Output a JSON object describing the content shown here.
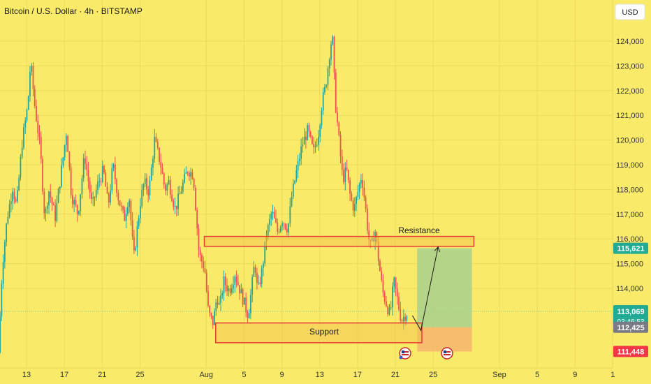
{
  "header": {
    "title": "Bitcoin / U.S. Dollar · 4h · BITSTAMP",
    "currency_button": "USD"
  },
  "colors": {
    "background": "#f9ea6a",
    "up": "#26a69a",
    "down": "#ef5350",
    "zone_stroke": "#e53935",
    "zone_fill": "#f6c451",
    "target_fill": "#a8d08d",
    "stop_fill": "#f7b46e",
    "current_price_bg": "#22ab94",
    "entry_bg": "#787b86",
    "stop_bg": "#f23645"
  },
  "chart_data": {
    "type": "candlestick",
    "y_ticks": [
      "124,000",
      "123,000",
      "122,000",
      "121,000",
      "120,000",
      "119,000",
      "118,000",
      "117,000",
      "116,000",
      "115,000",
      "114,000"
    ],
    "ylim": [
      111000,
      124600
    ],
    "x_ticks": [
      "13",
      "17",
      "21",
      "25",
      "Aug",
      "5",
      "9",
      "13",
      "17",
      "21",
      "25",
      "Sep",
      "5",
      "9",
      "1"
    ],
    "x_tick_values": [
      13,
      17,
      21,
      25,
      32,
      36,
      40,
      44,
      48,
      52,
      56,
      63,
      67,
      71,
      75
    ],
    "xlim": [
      10.2,
      76.3
    ],
    "candle_range_days": [
      10.2,
      53.3
    ],
    "price_path": [
      [
        10.2,
        111400
      ],
      [
        10.6,
        114900
      ],
      [
        11.1,
        116800
      ],
      [
        11.7,
        118100
      ],
      [
        12.1,
        117300
      ],
      [
        12.7,
        119900
      ],
      [
        13.3,
        121400
      ],
      [
        13.6,
        123200
      ],
      [
        14.0,
        121500
      ],
      [
        14.6,
        119700
      ],
      [
        15.1,
        116800
      ],
      [
        15.5,
        118000
      ],
      [
        16.2,
        116900
      ],
      [
        16.9,
        118900
      ],
      [
        17.4,
        120400
      ],
      [
        17.9,
        117800
      ],
      [
        18.6,
        117000
      ],
      [
        19.3,
        119400
      ],
      [
        20.1,
        117300
      ],
      [
        20.7,
        118200
      ],
      [
        21.3,
        118800
      ],
      [
        21.8,
        117300
      ],
      [
        22.3,
        119000
      ],
      [
        22.9,
        117600
      ],
      [
        23.5,
        116800
      ],
      [
        24.0,
        117800
      ],
      [
        24.5,
        115200
      ],
      [
        25.2,
        117500
      ],
      [
        25.6,
        118300
      ],
      [
        26.1,
        117900
      ],
      [
        26.7,
        120000
      ],
      [
        27.3,
        119100
      ],
      [
        27.8,
        118000
      ],
      [
        28.2,
        118300
      ],
      [
        28.9,
        117200
      ],
      [
        29.6,
        118100
      ],
      [
        30.2,
        118800
      ],
      [
        30.8,
        118600
      ],
      [
        31.4,
        115400
      ],
      [
        32.0,
        114800
      ],
      [
        32.4,
        113000
      ],
      [
        32.9,
        112600
      ],
      [
        33.3,
        113700
      ],
      [
        33.6,
        113200
      ],
      [
        34.0,
        114300
      ],
      [
        34.6,
        113900
      ],
      [
        35.2,
        114600
      ],
      [
        35.6,
        114100
      ],
      [
        36.1,
        113500
      ],
      [
        36.6,
        112900
      ],
      [
        36.9,
        113800
      ],
      [
        37.3,
        115100
      ],
      [
        37.6,
        113800
      ],
      [
        38.1,
        114800
      ],
      [
        38.5,
        116100
      ],
      [
        39.1,
        117100
      ],
      [
        39.7,
        116300
      ],
      [
        40.2,
        116800
      ],
      [
        40.8,
        116400
      ],
      [
        41.2,
        117700
      ],
      [
        41.7,
        118700
      ],
      [
        42.3,
        119800
      ],
      [
        42.9,
        120400
      ],
      [
        43.5,
        119500
      ],
      [
        44.0,
        120200
      ],
      [
        44.4,
        121500
      ],
      [
        44.8,
        122200
      ],
      [
        45.2,
        123500
      ],
      [
        45.5,
        124300
      ],
      [
        45.8,
        121600
      ],
      [
        46.2,
        120000
      ],
      [
        46.6,
        118400
      ],
      [
        47.0,
        118800
      ],
      [
        47.4,
        117700
      ],
      [
        47.8,
        117200
      ],
      [
        48.2,
        117900
      ],
      [
        48.6,
        118600
      ],
      [
        49.0,
        117300
      ],
      [
        49.3,
        116100
      ],
      [
        49.6,
        115600
      ],
      [
        50.0,
        116400
      ],
      [
        50.4,
        115100
      ],
      [
        50.8,
        113900
      ],
      [
        51.2,
        113400
      ],
      [
        51.6,
        112900
      ],
      [
        52.0,
        114300
      ],
      [
        52.4,
        113500
      ],
      [
        52.8,
        112700
      ],
      [
        53.3,
        113000
      ]
    ]
  },
  "annotations": {
    "resistance_label": "Resistance",
    "support_label": "Support",
    "resistance_zone": [
      115700,
      116100
    ],
    "support_zone": [
      111800,
      112600
    ],
    "resistance_x": [
      31.8,
      60.3
    ],
    "support_x": [
      33.0,
      54.8
    ],
    "target_box_x": [
      54.3,
      60.1
    ],
    "target_box_y": [
      112425,
      115621
    ],
    "stop_box_y": [
      111448,
      112425
    ],
    "path_points": [
      [
        53.8,
        112900
      ],
      [
        54.7,
        112300
      ],
      [
        56.5,
        115650
      ]
    ]
  },
  "price_labels": {
    "target": "115,621",
    "current": "113,069",
    "countdown": "03:46:53",
    "entry": "112,425",
    "stop": "111,448",
    "current_value": 113069
  },
  "event_markers": [
    "us-flag-icon",
    "us-flag-icon"
  ]
}
